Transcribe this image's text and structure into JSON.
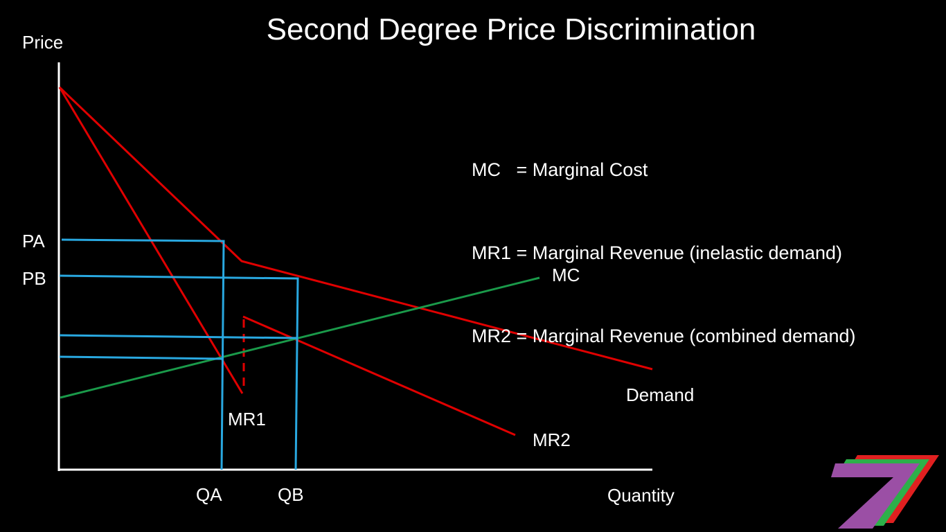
{
  "title": "Second Degree Price Discrimination",
  "legend": [
    "MC   = Marginal Cost",
    "MR1 = Marginal Revenue (inelastic demand)",
    "MR2 = Marginal Revenue (combined demand)"
  ],
  "axes": {
    "y_label": "Price",
    "x_label": "Quantity"
  },
  "price_labels": {
    "pa": "PA",
    "pb": "PB"
  },
  "quantity_labels": {
    "qa": "QA",
    "qb": "QB"
  },
  "curve_labels": {
    "mc": "MC",
    "demand": "Demand",
    "mr1": "MR1",
    "mr2": "MR2"
  },
  "colors": {
    "background": "#000000",
    "axis": "#ffffff",
    "demand": "#e00000",
    "marginal_revenue": "#e00000",
    "marginal_cost": "#1a9a4a",
    "guide_lines": "#29a8e0",
    "logo": [
      "#9b4fa5",
      "#2db04a",
      "#e02020"
    ]
  }
}
